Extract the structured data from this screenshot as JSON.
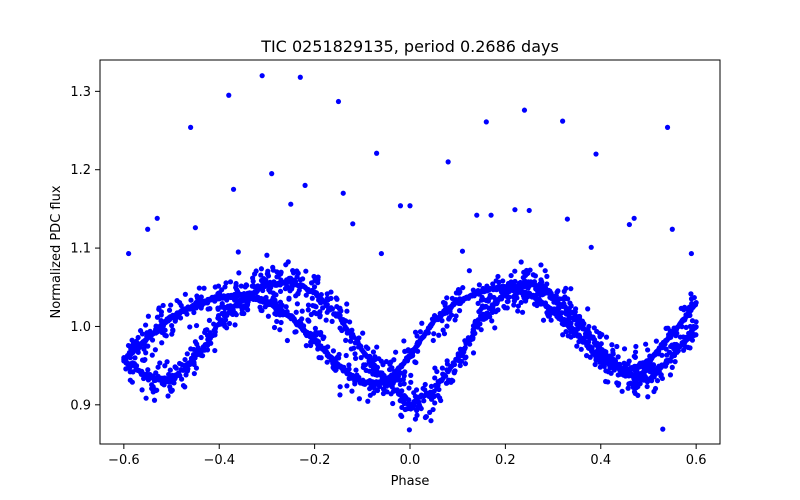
{
  "chart_data": {
    "type": "scatter",
    "title": "TIC 0251829135, period 0.2686 days",
    "xlabel": "Phase",
    "ylabel": "Normalized PDC flux",
    "xlim": [
      -0.65,
      0.65
    ],
    "ylim": [
      0.85,
      1.34
    ],
    "xticks": [
      -0.6,
      -0.4,
      -0.2,
      0.0,
      0.2,
      0.4,
      0.6
    ],
    "xtick_labels": [
      "−0.6",
      "−0.4",
      "−0.2",
      "0.0",
      "0.2",
      "0.4",
      "0.6"
    ],
    "yticks": [
      0.9,
      1.0,
      1.1,
      1.2,
      1.3
    ],
    "ytick_labels": [
      "0.9",
      "1.0",
      "1.1",
      "1.2",
      "1.3"
    ],
    "grid": false,
    "legend": "none",
    "marker_color": "#0000ff",
    "series": [
      {
        "curve_a": {
          "x": [
            -0.6,
            -0.55,
            -0.5,
            -0.45,
            -0.4,
            -0.35,
            -0.3,
            -0.25,
            -0.2,
            -0.15,
            -0.1,
            -0.05,
            0.0,
            0.05,
            0.1,
            0.15,
            0.2,
            0.25,
            0.3,
            0.35,
            0.4,
            0.45,
            0.5,
            0.55,
            0.6
          ],
          "y": [
            0.957,
            0.985,
            1.012,
            1.028,
            1.037,
            1.04,
            1.032,
            1.012,
            0.982,
            0.95,
            0.928,
            0.928,
            0.962,
            1.007,
            1.032,
            1.045,
            1.05,
            1.042,
            1.02,
            0.99,
            0.958,
            0.943,
            0.955,
            0.99,
            1.03
          ]
        },
        "curve_b": {
          "x": [
            -0.6,
            -0.55,
            -0.5,
            -0.45,
            -0.4,
            -0.35,
            -0.3,
            -0.25,
            -0.2,
            -0.15,
            -0.1,
            -0.05,
            0.0,
            0.05,
            0.1,
            0.15,
            0.2,
            0.25,
            0.3,
            0.35,
            0.4,
            0.45,
            0.5,
            0.55,
            0.6
          ],
          "y": [
            0.958,
            0.935,
            0.932,
            0.96,
            1.003,
            1.035,
            1.055,
            1.058,
            1.042,
            1.012,
            0.97,
            0.93,
            0.9,
            0.918,
            0.96,
            1.008,
            1.045,
            1.055,
            1.04,
            1.01,
            0.97,
            0.94,
            0.93,
            0.96,
            1.0
          ]
        },
        "outliers": {
          "x": [
            -0.59,
            -0.55,
            -0.53,
            -0.46,
            -0.45,
            -0.38,
            -0.37,
            -0.36,
            -0.31,
            -0.29,
            -0.25,
            -0.23,
            -0.22,
            -0.15,
            -0.14,
            -0.12,
            -0.07,
            -0.06,
            -0.02,
            0.0,
            0.08,
            0.11,
            0.14,
            0.16,
            0.17,
            0.22,
            0.24,
            0.25,
            0.32,
            0.33,
            0.38,
            0.39,
            0.46,
            0.47,
            0.53,
            0.54,
            0.55,
            0.59
          ],
          "y": [
            1.093,
            1.124,
            1.138,
            1.254,
            1.126,
            1.295,
            1.175,
            1.095,
            1.32,
            1.195,
            1.156,
            1.318,
            1.18,
            1.287,
            1.17,
            1.131,
            1.221,
            1.093,
            1.154,
            1.154,
            1.21,
            1.096,
            1.142,
            1.261,
            1.142,
            1.149,
            1.276,
            1.148,
            1.262,
            1.137,
            1.101,
            1.22,
            1.13,
            1.138,
            0.869,
            1.254,
            1.124,
            1.093
          ]
        }
      }
    ]
  }
}
